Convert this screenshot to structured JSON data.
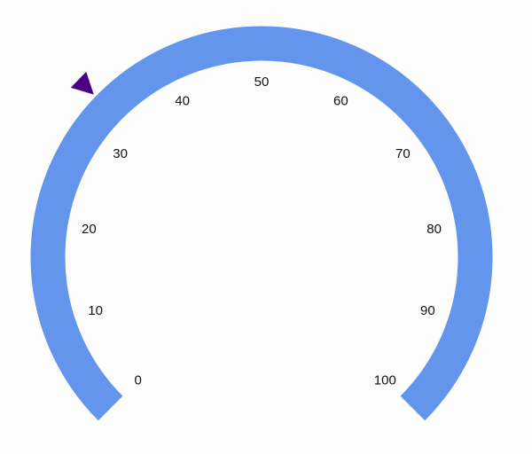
{
  "gauge": {
    "min": 0,
    "max": 100,
    "interval": 10,
    "pointer_value": 33,
    "range_color": "#6495ED",
    "pointer_color": "#4B0082",
    "pointer_icon": "triangle-marker-icon",
    "labels": [
      "0",
      "10",
      "20",
      "30",
      "40",
      "50",
      "60",
      "70",
      "80",
      "90",
      "100"
    ]
  }
}
